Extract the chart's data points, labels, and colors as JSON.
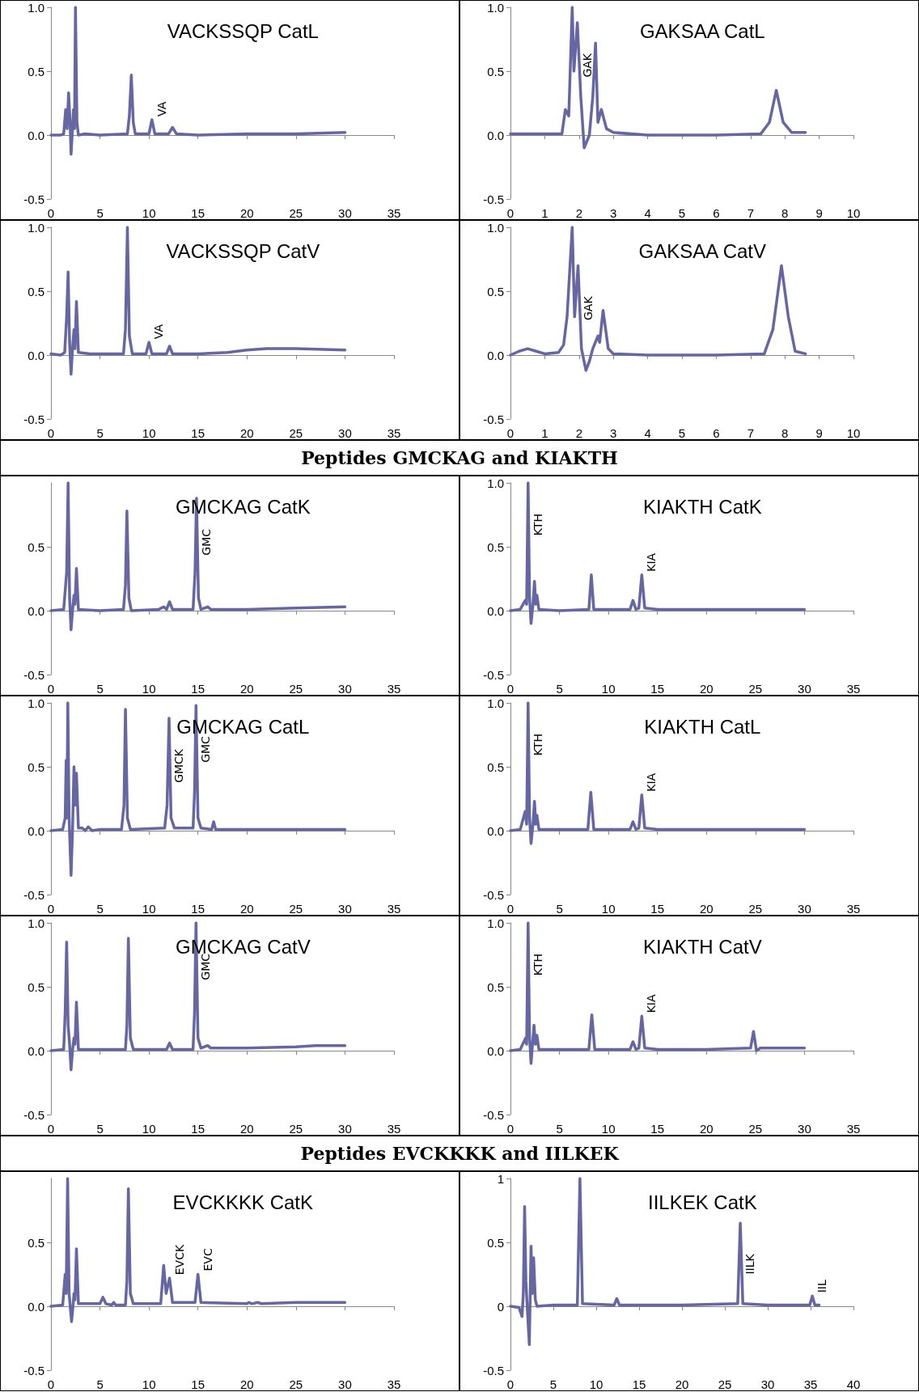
{
  "chart_data": [
    {
      "type": "line",
      "title": "VACKSSQP CatL",
      "color": "#6666a3",
      "marker": "none",
      "line_style": "solid",
      "xlim": [
        0,
        35
      ],
      "xticks": [
        0,
        5,
        10,
        15,
        20,
        25,
        30,
        35
      ],
      "ylim": [
        -0.5,
        1.0
      ],
      "yticks": [
        {
          "value": -0.5,
          "label": "-0.5"
        },
        {
          "value": 0,
          "label": "0.0"
        },
        {
          "value": 0.5,
          "label": "0.5"
        },
        {
          "value": 1.0,
          "label": "1.0"
        }
      ],
      "x": [
        0,
        1,
        1.3,
        1.5,
        1.65,
        1.8,
        1.95,
        2.05,
        2.2,
        2.3,
        2.4,
        2.5,
        2.65,
        2.8,
        3.5,
        5,
        7.8,
        8.0,
        8.2,
        8.4,
        8.6,
        10,
        10.3,
        10.6,
        12,
        12.4,
        12.8,
        15,
        20,
        25,
        30
      ],
      "values": [
        0,
        0,
        0.01,
        0.2,
        0.05,
        0.33,
        0.1,
        -0.15,
        0.05,
        0.2,
        0.05,
        1.0,
        0.1,
        0,
        0.01,
        0,
        0.01,
        0.15,
        0.47,
        0.1,
        0.01,
        0.01,
        0.12,
        0.01,
        0.01,
        0.06,
        0.01,
        0,
        0.01,
        0.01,
        0.02
      ],
      "annotations": [
        {
          "text": "VA",
          "x": 10.3,
          "y": 0.12
        }
      ]
    },
    {
      "type": "line",
      "title": "GAKSAA CatL",
      "color": "#6666a3",
      "marker": "none",
      "line_style": "solid",
      "xlim": [
        0,
        10
      ],
      "xticks": [
        0,
        1,
        2,
        3,
        4,
        5,
        6,
        7,
        8,
        9,
        10
      ],
      "ylim": [
        -0.5,
        1.0
      ],
      "yticks": [
        {
          "value": -0.5,
          "label": "-0.5"
        },
        {
          "value": 0,
          "label": "0.0"
        },
        {
          "value": 0.5,
          "label": "0.5"
        },
        {
          "value": 1.0,
          "label": "1.0"
        }
      ],
      "x": [
        0,
        1,
        1.5,
        1.6,
        1.7,
        1.8,
        1.85,
        1.95,
        2.05,
        2.15,
        2.3,
        2.4,
        2.48,
        2.55,
        2.65,
        2.8,
        3,
        4,
        5,
        6,
        7.3,
        7.55,
        7.75,
        7.95,
        8.2,
        8.6
      ],
      "values": [
        0.01,
        0.01,
        0.01,
        0.2,
        0.15,
        1.0,
        0.5,
        0.88,
        0.3,
        -0.1,
        0,
        0.3,
        0.72,
        0.1,
        0.2,
        0.05,
        0.02,
        0,
        0,
        0,
        0.01,
        0.1,
        0.35,
        0.1,
        0.02,
        0.02
      ],
      "annotations": [
        {
          "text": "GAK",
          "x": 1.95,
          "y": 0.88
        }
      ]
    },
    {
      "type": "line",
      "title": "VACKSSQP CatV",
      "color": "#6666a3",
      "marker": "none",
      "line_style": "solid",
      "xlim": [
        0,
        35
      ],
      "xticks": [
        0,
        5,
        10,
        15,
        20,
        25,
        30,
        35
      ],
      "ylim": [
        -0.5,
        1.0
      ],
      "yticks": [
        {
          "value": -0.5,
          "label": "-0.5"
        },
        {
          "value": 0,
          "label": "0.0"
        },
        {
          "value": 0.5,
          "label": "0.5"
        },
        {
          "value": 1.0,
          "label": "1.0"
        }
      ],
      "x": [
        0,
        1,
        1.4,
        1.6,
        1.75,
        1.9,
        2.05,
        2.2,
        2.35,
        2.45,
        2.6,
        2.8,
        4,
        7.4,
        7.6,
        7.8,
        8.0,
        8.3,
        9.7,
        10.0,
        10.3,
        11.8,
        12.1,
        12.4,
        15,
        18,
        20,
        22,
        25,
        30
      ],
      "values": [
        0.01,
        0,
        0.02,
        0.3,
        0.65,
        0.1,
        -0.15,
        0.05,
        0.2,
        0.05,
        0.42,
        0.02,
        0.01,
        0.01,
        0.2,
        1.0,
        0.15,
        0.01,
        0.01,
        0.1,
        0.01,
        0.01,
        0.07,
        0.01,
        0.01,
        0.02,
        0.04,
        0.05,
        0.05,
        0.04
      ],
      "annotations": [
        {
          "text": "VA",
          "x": 10.0,
          "y": 0.1
        }
      ]
    },
    {
      "type": "line",
      "title": "GAKSAA CatV",
      "color": "#6666a3",
      "marker": "none",
      "line_style": "solid",
      "xlim": [
        0,
        10
      ],
      "xticks": [
        0,
        1,
        2,
        3,
        4,
        5,
        6,
        7,
        8,
        9,
        10
      ],
      "ylim": [
        -0.5,
        1.0
      ],
      "yticks": [
        {
          "value": -0.5,
          "label": "-0.5"
        },
        {
          "value": 0,
          "label": "0.0"
        },
        {
          "value": 0.5,
          "label": "0.5"
        },
        {
          "value": 1.0,
          "label": "1.0"
        }
      ],
      "x": [
        0,
        0.25,
        0.5,
        0.75,
        1,
        1.4,
        1.55,
        1.65,
        1.8,
        1.87,
        1.97,
        2.07,
        2.2,
        2.3,
        2.4,
        2.55,
        2.6,
        2.7,
        2.85,
        3,
        4,
        6,
        7.4,
        7.65,
        7.9,
        8.1,
        8.3,
        8.6
      ],
      "values": [
        0,
        0.03,
        0.05,
        0.03,
        0.01,
        0.02,
        0.08,
        0.3,
        1.0,
        0.3,
        0.7,
        0.05,
        -0.12,
        -0.05,
        0.05,
        0.15,
        0.1,
        0.35,
        0.05,
        0.01,
        0,
        0,
        0.01,
        0.2,
        0.7,
        0.3,
        0.03,
        0.01
      ],
      "annotations": [
        {
          "text": "GAK",
          "x": 1.97,
          "y": 0.7
        }
      ]
    },
    {
      "type": "line",
      "title": "GMCKAG CatK",
      "color": "#6666a3",
      "marker": "none",
      "line_style": "solid",
      "xlim": [
        0,
        35
      ],
      "xticks": [
        0,
        5,
        10,
        15,
        20,
        25,
        30,
        35
      ],
      "ylim": [
        -0.5,
        1.0
      ],
      "yticks": [
        {
          "value": -0.5,
          "label": "-0.5"
        },
        {
          "value": 0,
          "label": "0.0"
        },
        {
          "value": 0.5,
          "label": "0.5"
        }
      ],
      "x": [
        0,
        1.3,
        1.6,
        1.75,
        1.9,
        2.05,
        2.2,
        2.35,
        2.45,
        2.6,
        2.8,
        5,
        7.4,
        7.6,
        7.75,
        7.95,
        8.2,
        11,
        11.5,
        11.8,
        12.1,
        12.4,
        14.5,
        14.7,
        14.85,
        15.05,
        15.3,
        16,
        16.3,
        20,
        25,
        30
      ],
      "values": [
        0,
        0.01,
        0.3,
        1.0,
        0.1,
        -0.15,
        0,
        0.12,
        0.05,
        0.33,
        0.01,
        0,
        0.01,
        0.2,
        0.78,
        0.1,
        0,
        0.01,
        0.03,
        0.01,
        0.07,
        0.01,
        0.01,
        0.3,
        0.88,
        0.1,
        0.01,
        0.03,
        0.01,
        0.01,
        0.02,
        0.03
      ],
      "annotations": [
        "Peptides GMCKAG and KIAKTH",
        {
          "text": "GMC",
          "x": 14.85,
          "y": 0.88
        }
      ]
    },
    {
      "type": "line",
      "title": "KIAKTH CatK",
      "color": "#6666a3",
      "marker": "none",
      "line_style": "solid",
      "xlim": [
        0,
        35
      ],
      "xticks": [
        0,
        5,
        10,
        15,
        20,
        25,
        30,
        35
      ],
      "ylim": [
        -0.5,
        1.0
      ],
      "yticks": [
        {
          "value": -0.5,
          "label": "-0.5"
        },
        {
          "value": 0,
          "label": "0.0"
        },
        {
          "value": 0.5,
          "label": "0.5"
        },
        {
          "value": 1.0,
          "label": "1.0"
        }
      ],
      "x": [
        0,
        1,
        1.5,
        1.65,
        1.8,
        1.95,
        2.1,
        2.3,
        2.45,
        2.58,
        2.7,
        2.9,
        5,
        8.0,
        8.25,
        8.5,
        12.2,
        12.5,
        12.8,
        13.1,
        13.4,
        13.7,
        15,
        20,
        25,
        30
      ],
      "values": [
        0,
        0.01,
        0.08,
        0.05,
        1.0,
        0.1,
        -0.1,
        0.05,
        0.23,
        0.05,
        0.12,
        0.01,
        0,
        0.01,
        0.28,
        0.01,
        0.01,
        0.08,
        0.01,
        0.02,
        0.28,
        0.02,
        0.01,
        0.01,
        0.01,
        0.01
      ],
      "annotations": [
        {
          "text": "KTH",
          "x": 1.8,
          "y": 1.0
        },
        {
          "text": "KIA",
          "x": 13.4,
          "y": 0.28
        }
      ]
    },
    {
      "type": "line",
      "title": "GMCKAG CatL",
      "color": "#6666a3",
      "marker": "none",
      "line_style": "solid",
      "xlim": [
        0,
        35
      ],
      "xticks": [
        0,
        5,
        10,
        15,
        20,
        25,
        30,
        35
      ],
      "ylim": [
        -0.5,
        1.0
      ],
      "yticks": [
        {
          "value": -0.5,
          "label": "-0.5"
        },
        {
          "value": 0,
          "label": "0.0"
        },
        {
          "value": 0.5,
          "label": "0.5"
        },
        {
          "value": 1.0,
          "label": "1.0"
        }
      ],
      "x": [
        0,
        1.2,
        1.45,
        1.55,
        1.62,
        1.72,
        1.85,
        2.05,
        2.2,
        2.35,
        2.48,
        2.6,
        2.8,
        3.2,
        3.5,
        3.8,
        4.2,
        5,
        7.2,
        7.45,
        7.6,
        7.8,
        8.1,
        11.6,
        11.85,
        12.05,
        12.25,
        12.6,
        14.5,
        14.65,
        14.8,
        15.0,
        15.3,
        16.4,
        16.6,
        16.8,
        20,
        25,
        30
      ],
      "values": [
        0,
        0.01,
        0.1,
        0.55,
        0.1,
        1.0,
        0.1,
        -0.35,
        0,
        0.5,
        0.2,
        0.45,
        0.02,
        0.02,
        0,
        0.03,
        0,
        0.01,
        0.01,
        0.2,
        0.95,
        0.1,
        0.01,
        0.02,
        0.2,
        0.88,
        0.1,
        0.02,
        0.02,
        0.3,
        0.98,
        0.1,
        0.02,
        0.01,
        0.07,
        0.01,
        0.01,
        0.01,
        0.01
      ],
      "annotations": [
        {
          "text": "GMCK",
          "x": 12.05,
          "y": 0.88
        },
        {
          "text": "GMC",
          "x": 14.8,
          "y": 0.98
        }
      ]
    },
    {
      "type": "line",
      "title": "KIAKTH CatL",
      "color": "#6666a3",
      "marker": "none",
      "line_style": "solid",
      "xlim": [
        0,
        35
      ],
      "xticks": [
        0,
        5,
        10,
        15,
        20,
        25,
        30,
        35
      ],
      "ylim": [
        -0.5,
        1.0
      ],
      "yticks": [
        {
          "value": -0.5,
          "label": "-0.5"
        },
        {
          "value": 0,
          "label": "0.0"
        },
        {
          "value": 0.5,
          "label": "0.5"
        },
        {
          "value": 1.0,
          "label": "1.0"
        }
      ],
      "x": [
        0,
        1,
        1.5,
        1.65,
        1.8,
        1.95,
        2.1,
        2.3,
        2.45,
        2.58,
        2.7,
        2.9,
        5,
        7.9,
        8.2,
        8.5,
        12.2,
        12.5,
        12.8,
        13.1,
        13.4,
        13.7,
        15,
        20,
        25,
        30
      ],
      "values": [
        0,
        0.01,
        0.15,
        0.05,
        1.0,
        0.1,
        -0.1,
        0.05,
        0.23,
        0.05,
        0.12,
        0.01,
        0.01,
        0.01,
        0.3,
        0.01,
        0.01,
        0.07,
        0.01,
        0.02,
        0.28,
        0.02,
        0.01,
        0.01,
        0.01,
        0.01
      ],
      "annotations": [
        {
          "text": "KTH",
          "x": 1.8,
          "y": 1.0
        },
        {
          "text": "KIA",
          "x": 13.4,
          "y": 0.28
        }
      ]
    },
    {
      "type": "line",
      "title": "GMCKAG CatV",
      "color": "#6666a3",
      "marker": "none",
      "line_style": "solid",
      "xlim": [
        0,
        35
      ],
      "xticks": [
        0,
        5,
        10,
        15,
        20,
        25,
        30,
        35
      ],
      "ylim": [
        -0.5,
        1.0
      ],
      "yticks": [
        {
          "value": -0.5,
          "label": "-0.5"
        },
        {
          "value": 0,
          "label": "0.0"
        },
        {
          "value": 0.5,
          "label": "0.5"
        },
        {
          "value": 1.0,
          "label": "1.0"
        }
      ],
      "x": [
        0,
        1.3,
        1.45,
        1.6,
        1.75,
        1.9,
        2.05,
        2.2,
        2.35,
        2.45,
        2.6,
        2.8,
        5,
        7.6,
        7.75,
        7.9,
        8.1,
        8.4,
        10.5,
        11.8,
        12.1,
        12.4,
        14.5,
        14.65,
        14.8,
        15.0,
        15.3,
        16,
        16.3,
        20,
        25,
        27,
        30
      ],
      "values": [
        0,
        0.01,
        0.3,
        0.85,
        0.2,
        0.05,
        -0.15,
        0,
        0.1,
        0.05,
        0.38,
        0.01,
        0.01,
        0.01,
        0.2,
        0.88,
        0.1,
        0.01,
        0.01,
        0.01,
        0.06,
        0.01,
        0.01,
        0.3,
        1.0,
        0.1,
        0.02,
        0.04,
        0.02,
        0.02,
        0.03,
        0.04,
        0.04
      ],
      "annotations": [
        {
          "text": "GMC",
          "x": 14.8,
          "y": 1.0
        }
      ]
    },
    {
      "type": "line",
      "title": "KIAKTH CatV",
      "color": "#6666a3",
      "marker": "none",
      "line_style": "solid",
      "xlim": [
        0,
        35
      ],
      "xticks": [
        0,
        5,
        10,
        15,
        20,
        25,
        30,
        35
      ],
      "ylim": [
        -0.5,
        1.0
      ],
      "yticks": [
        {
          "value": -0.5,
          "label": "-0.5"
        },
        {
          "value": 0,
          "label": "0.0"
        },
        {
          "value": 0.5,
          "label": "0.5"
        },
        {
          "value": 1.0,
          "label": "1.0"
        }
      ],
      "x": [
        0,
        1,
        1.55,
        1.65,
        1.8,
        1.95,
        2.1,
        2.25,
        2.4,
        2.55,
        2.7,
        2.9,
        5,
        8.0,
        8.3,
        8.6,
        12.2,
        12.5,
        12.8,
        13.1,
        13.4,
        13.7,
        15,
        20,
        24.5,
        24.8,
        25.1,
        25.5,
        30
      ],
      "values": [
        0,
        0.01,
        0.1,
        0.05,
        1.0,
        0.1,
        -0.1,
        0.05,
        0.2,
        0.05,
        0.12,
        0.01,
        0.01,
        0.01,
        0.28,
        0.01,
        0.01,
        0.07,
        0.01,
        0.02,
        0.27,
        0.02,
        0.01,
        0.01,
        0.02,
        0.15,
        0.0,
        0.02,
        0.02
      ],
      "annotations": [
        {
          "text": "KTH",
          "x": 1.8,
          "y": 1.0
        },
        {
          "text": "KIA",
          "x": 13.4,
          "y": 0.27
        }
      ]
    },
    {
      "type": "line",
      "title": "EVCKKKK CatK",
      "color": "#6666a3",
      "marker": "none",
      "line_style": "solid",
      "xlim": [
        0,
        35
      ],
      "xticks": [
        0,
        5,
        10,
        15,
        20,
        25,
        30,
        35
      ],
      "ylim": [
        -0.5,
        1.0
      ],
      "yticks": [
        {
          "value": -0.5,
          "label": "-0.5"
        },
        {
          "value": 0,
          "label": "0.0"
        },
        {
          "value": 0.5,
          "label": "0.5"
        }
      ],
      "x": [
        0,
        1.2,
        1.45,
        1.55,
        1.7,
        1.85,
        2.1,
        2.25,
        2.35,
        2.45,
        2.6,
        2.8,
        5,
        5.3,
        5.6,
        6.2,
        6.4,
        6.6,
        7.6,
        7.75,
        7.9,
        8.1,
        8.4,
        11.2,
        11.5,
        11.75,
        12.1,
        12.4,
        14.7,
        15.0,
        15.3,
        20,
        20.2,
        20.5,
        21.1,
        21.5,
        25,
        30
      ],
      "values": [
        0,
        0.01,
        0.25,
        0.1,
        1.0,
        0.1,
        -0.12,
        0,
        0.1,
        0.05,
        0.45,
        0.02,
        0.02,
        0.07,
        0.02,
        0.01,
        0.03,
        0.01,
        0.01,
        0.2,
        0.92,
        0.1,
        0.02,
        0.02,
        0.32,
        0.1,
        0.22,
        0.03,
        0.03,
        0.25,
        0.03,
        0.02,
        0.03,
        0.02,
        0.03,
        0.02,
        0.03,
        0.03
      ],
      "annotations": [
        "Peptides EVCKKKK and IILKEK",
        {
          "text": "EVCK",
          "x": 12.1,
          "y": 0.22
        },
        {
          "text": "EVC",
          "x": 15.0,
          "y": 0.25
        }
      ]
    },
    {
      "type": "line",
      "title": "IILKEK CatK",
      "color": "#6666a3",
      "marker": "none",
      "line_style": "solid",
      "xlim": [
        0,
        40
      ],
      "xticks": [
        0,
        5,
        10,
        15,
        20,
        25,
        30,
        35,
        40
      ],
      "ylim": [
        -0.5,
        1
      ],
      "yticks": [
        {
          "value": -0.5,
          "label": "-0.5"
        },
        {
          "value": 0,
          "label": "0"
        },
        {
          "value": 0.5,
          "label": "0.5"
        },
        {
          "value": 1,
          "label": "1"
        }
      ],
      "x": [
        0,
        1,
        1.35,
        1.5,
        1.65,
        1.8,
        1.95,
        2.2,
        2.4,
        2.55,
        2.7,
        2.9,
        3.1,
        5,
        7.8,
        8.1,
        8.4,
        12.1,
        12.4,
        12.7,
        20,
        26.5,
        26.8,
        27.1,
        30,
        34.9,
        35.2,
        35.5,
        36
      ],
      "values": [
        0,
        -0.01,
        -0.08,
        0.1,
        0.78,
        0.2,
        0,
        -0.3,
        0.47,
        0.1,
        0.38,
        0.05,
        0,
        0.01,
        0.01,
        1.0,
        0.02,
        0.01,
        0.06,
        0.01,
        0.01,
        0.02,
        0.65,
        0.02,
        0.01,
        0.01,
        0.08,
        0.01,
        0.01
      ],
      "annotations": [
        {
          "text": "IILK",
          "x": 26.8,
          "y": 0.65
        },
        {
          "text": "IIL",
          "x": 35.2,
          "y": 0.08
        }
      ]
    }
  ]
}
